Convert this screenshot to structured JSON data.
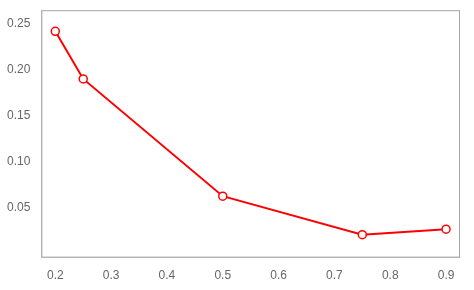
{
  "chart_data": {
    "type": "line",
    "x": [
      0.2,
      0.25,
      0.5,
      0.75,
      0.9
    ],
    "values": [
      0.242,
      0.19,
      0.062,
      0.02,
      0.026
    ],
    "color": "#FF0000",
    "marker": "circle",
    "xlim": [
      0.175,
      0.925
    ],
    "ylim": [
      -0.005,
      0.265
    ],
    "xticks": [
      0.2,
      0.3,
      0.4,
      0.5,
      0.6,
      0.7,
      0.8,
      0.9
    ],
    "yticks": [
      0.05,
      {
        "value": 0.1,
        "label": "0.10"
      },
      0.15,
      {
        "value": 0.2,
        "label": "0.20"
      },
      0.25
    ],
    "grid": false
  }
}
